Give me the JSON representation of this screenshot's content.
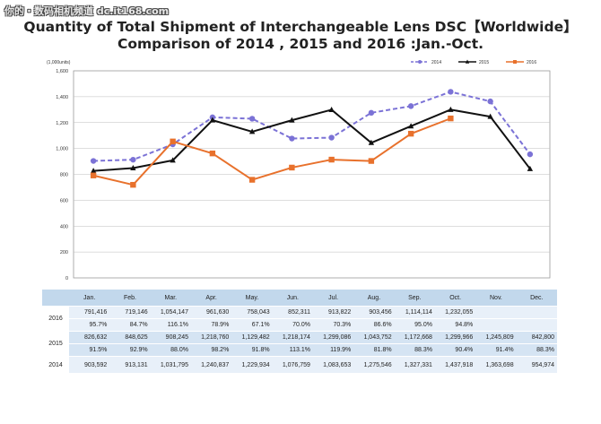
{
  "watermark": "你的・数码相机频道 dc.it168.com",
  "chart_data": {
    "type": "line",
    "title": "Quantity of Total Shipment of Interchangeable Lens DSC【Worldwide】",
    "subtitle": "Comparison of 2014 , 2015 and 2016 :Jan.-Oct.",
    "ylabel": "(1,000units)",
    "ylim": [
      0,
      1600
    ],
    "yticks": [
      0,
      200,
      400,
      600,
      800,
      "1,000",
      "1,200",
      "1,400",
      "1,600"
    ],
    "grid": true,
    "legend_placement": "top-right",
    "categories": [
      "Jan.",
      "Feb.",
      "Mar.",
      "Apr.",
      "May.",
      "Jun.",
      "Jul.",
      "Aug.",
      "Sep.",
      "Oct.",
      "Nov.",
      "Dec."
    ],
    "series": [
      {
        "name": "2014",
        "color": "#7b72d6",
        "style": "dashed",
        "marker": "circle",
        "values": [
          903.592,
          913.131,
          1031.795,
          1240.837,
          1229.934,
          1076.759,
          1083.653,
          1275.546,
          1327.331,
          1437.918,
          1363.698,
          954.974
        ]
      },
      {
        "name": "2015",
        "color": "#111111",
        "style": "solid",
        "marker": "triangle",
        "values": [
          826.632,
          848.625,
          908.245,
          1218.76,
          1129.482,
          1218.174,
          1299.086,
          1043.752,
          1172.668,
          1299.966,
          1245.809,
          842.8
        ]
      },
      {
        "name": "2016",
        "color": "#e8712c",
        "style": "solid",
        "marker": "square",
        "values": [
          791.416,
          719.146,
          1054.147,
          961.63,
          758.043,
          852.311,
          913.822,
          903.456,
          1114.114,
          1232.055,
          null,
          null
        ]
      }
    ]
  },
  "table": {
    "rows": [
      {
        "year": "2016",
        "values": [
          "791,416",
          "719,146",
          "1,054,147",
          "961,630",
          "758,043",
          "852,311",
          "913,822",
          "903,456",
          "1,114,114",
          "1,232,055",
          "",
          ""
        ],
        "pct": [
          "95.7%",
          "84.7%",
          "116.1%",
          "78.9%",
          "67.1%",
          "70.0%",
          "70.3%",
          "86.6%",
          "95.0%",
          "94.8%",
          "",
          ""
        ]
      },
      {
        "year": "2015",
        "values": [
          "826,632",
          "848,625",
          "908,245",
          "1,218,760",
          "1,129,482",
          "1,218,174",
          "1,299,086",
          "1,043,752",
          "1,172,668",
          "1,299,966",
          "1,245,809",
          "842,800"
        ],
        "pct": [
          "91.5%",
          "92.9%",
          "88.0%",
          "98.2%",
          "91.8%",
          "113.1%",
          "119.9%",
          "81.8%",
          "88.3%",
          "90.4%",
          "91.4%",
          "88.3%"
        ]
      },
      {
        "year": "2014",
        "values": [
          "903,592",
          "913,131",
          "1,031,795",
          "1,240,837",
          "1,229,934",
          "1,076,759",
          "1,083,653",
          "1,275,546",
          "1,327,331",
          "1,437,918",
          "1,363,698",
          "954,974"
        ]
      }
    ]
  }
}
